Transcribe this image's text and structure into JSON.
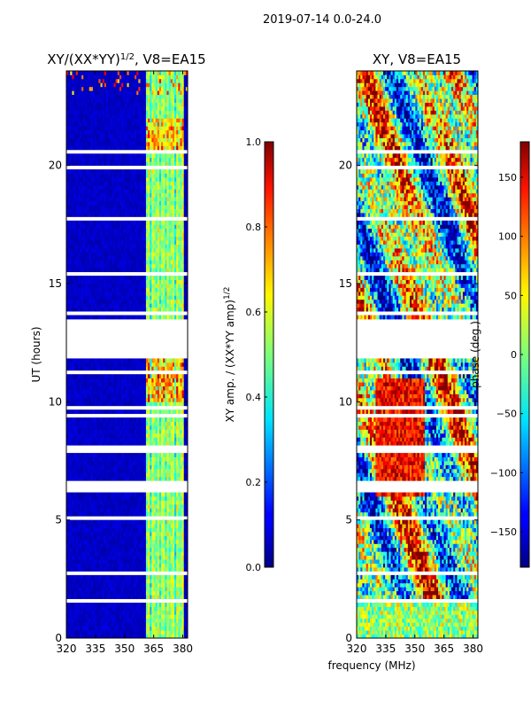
{
  "suptitle": "2019-07-14 0.0-24.0",
  "shared_xlabel": "frequency (MHz)",
  "chart_data": [
    {
      "type": "heatmap",
      "title_main": "XY/(XX*YY)",
      "title_sup": "1/2",
      "title_rest": ", V8=EA15",
      "xlabel": "frequency (MHz)",
      "ylabel": "UT (hours)",
      "xlim": [
        320,
        382.5
      ],
      "ylim": [
        0,
        24
      ],
      "x_ticks": [
        320,
        335,
        350,
        365,
        380
      ],
      "y_ticks": [
        0,
        5,
        10,
        15,
        20
      ],
      "colorbar": {
        "label": "XY amp. / (XX*YY amp)",
        "label_sup": "1/2",
        "range": [
          0.0,
          1.0
        ],
        "ticks": [
          "0.0",
          "0.2",
          "0.4",
          "0.6",
          "0.8",
          "1.0"
        ],
        "tick_values": [
          0.0,
          0.2,
          0.4,
          0.6,
          0.8,
          1.0
        ]
      }
    },
    {
      "type": "heatmap",
      "title": "XY, V8=EA15",
      "xlabel": "frequency (MHz)",
      "ylabel": "",
      "xlim": [
        320,
        382.5
      ],
      "ylim": [
        0,
        24
      ],
      "x_ticks": [
        320,
        335,
        350,
        365,
        380
      ],
      "y_ticks": [
        0,
        5,
        10,
        15,
        20
      ],
      "colorbar": {
        "label": "phase (deg.)",
        "range": [
          -180,
          180
        ],
        "ticks": [
          "150",
          "100",
          "50",
          "0",
          "−50",
          "−100",
          "−150"
        ],
        "tick_values": [
          150,
          100,
          50,
          0,
          -50,
          -100,
          -150
        ]
      }
    }
  ]
}
